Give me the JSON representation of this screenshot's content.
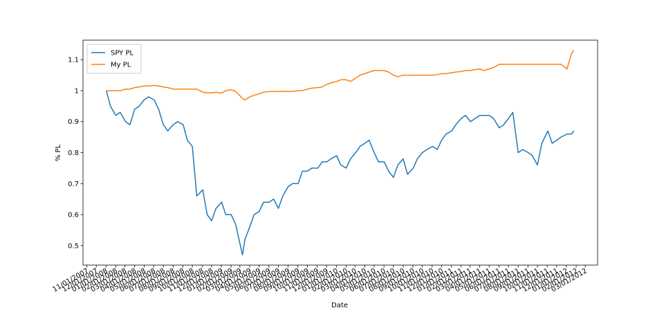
{
  "chart_data": {
    "type": "line",
    "xlabel": "Date",
    "ylabel": "% PL",
    "x": [
      "2008-01-02",
      "2008-01-15",
      "2008-02-01",
      "2008-02-15",
      "2008-03-03",
      "2008-03-17",
      "2008-04-01",
      "2008-04-15",
      "2008-05-01",
      "2008-05-15",
      "2008-06-02",
      "2008-06-16",
      "2008-07-01",
      "2008-07-15",
      "2008-08-01",
      "2008-08-15",
      "2008-09-02",
      "2008-09-15",
      "2008-10-01",
      "2008-10-15",
      "2008-11-03",
      "2008-11-17",
      "2008-12-01",
      "2008-12-15",
      "2009-01-02",
      "2009-01-15",
      "2009-02-01",
      "2009-02-15",
      "2009-03-09",
      "2009-03-17",
      "2009-04-01",
      "2009-04-15",
      "2009-05-01",
      "2009-05-15",
      "2009-06-02",
      "2009-06-16",
      "2009-07-01",
      "2009-07-15",
      "2009-08-01",
      "2009-08-15",
      "2009-09-02",
      "2009-09-15",
      "2009-10-01",
      "2009-10-15",
      "2009-11-03",
      "2009-11-17",
      "2009-12-01",
      "2009-12-15",
      "2010-01-02",
      "2010-01-15",
      "2010-02-01",
      "2010-02-15",
      "2010-03-03",
      "2010-03-17",
      "2010-04-01",
      "2010-04-15",
      "2010-05-01",
      "2010-05-15",
      "2010-06-02",
      "2010-06-16",
      "2010-07-01",
      "2010-07-15",
      "2010-08-01",
      "2010-08-15",
      "2010-09-02",
      "2010-09-15",
      "2010-10-01",
      "2010-10-15",
      "2010-11-03",
      "2010-11-17",
      "2010-12-01",
      "2010-12-15",
      "2011-01-02",
      "2011-01-15",
      "2011-02-01",
      "2011-02-15",
      "2011-03-03",
      "2011-03-17",
      "2011-04-01",
      "2011-04-15",
      "2011-05-01",
      "2011-05-15",
      "2011-06-02",
      "2011-06-16",
      "2011-07-01",
      "2011-07-15",
      "2011-08-01",
      "2011-08-15",
      "2011-09-02",
      "2011-09-15",
      "2011-10-01",
      "2011-10-15",
      "2011-11-03",
      "2011-11-17",
      "2011-12-01",
      "2011-12-15",
      "2012-01-03",
      "2012-01-17",
      "2012-01-25"
    ],
    "series": [
      {
        "name": "SPY PL",
        "color": "#1f77b4",
        "values": [
          1.0,
          0.95,
          0.92,
          0.93,
          0.9,
          0.89,
          0.94,
          0.95,
          0.97,
          0.98,
          0.97,
          0.94,
          0.89,
          0.87,
          0.89,
          0.9,
          0.89,
          0.84,
          0.82,
          0.66,
          0.68,
          0.6,
          0.58,
          0.62,
          0.64,
          0.6,
          0.6,
          0.57,
          0.47,
          0.52,
          0.56,
          0.6,
          0.61,
          0.64,
          0.64,
          0.65,
          0.62,
          0.66,
          0.69,
          0.7,
          0.7,
          0.74,
          0.74,
          0.75,
          0.75,
          0.77,
          0.77,
          0.78,
          0.79,
          0.76,
          0.75,
          0.78,
          0.8,
          0.82,
          0.83,
          0.84,
          0.8,
          0.77,
          0.77,
          0.74,
          0.72,
          0.76,
          0.78,
          0.73,
          0.75,
          0.78,
          0.8,
          0.81,
          0.82,
          0.81,
          0.84,
          0.86,
          0.87,
          0.89,
          0.91,
          0.92,
          0.9,
          0.91,
          0.92,
          0.92,
          0.92,
          0.91,
          0.88,
          0.89,
          0.91,
          0.93,
          0.8,
          0.81,
          0.8,
          0.79,
          0.76,
          0.83,
          0.87,
          0.83,
          0.84,
          0.85,
          0.86,
          0.86,
          0.87
        ]
      },
      {
        "name": "My PL",
        "color": "#ff7f0e",
        "values": [
          1.0,
          1.0,
          1.0,
          1.0,
          1.005,
          1.005,
          1.01,
          1.012,
          1.015,
          1.015,
          1.017,
          1.015,
          1.012,
          1.01,
          1.005,
          1.005,
          1.005,
          1.005,
          1.005,
          1.005,
          0.995,
          0.993,
          0.993,
          0.995,
          0.992,
          1.0,
          1.003,
          0.998,
          0.975,
          0.97,
          0.98,
          0.985,
          0.99,
          0.995,
          0.997,
          0.997,
          0.997,
          0.998,
          0.997,
          0.998,
          1.0,
          1.0,
          1.005,
          1.008,
          1.01,
          1.012,
          1.02,
          1.025,
          1.03,
          1.035,
          1.035,
          1.03,
          1.04,
          1.05,
          1.055,
          1.06,
          1.065,
          1.065,
          1.065,
          1.06,
          1.05,
          1.045,
          1.05,
          1.05,
          1.05,
          1.05,
          1.05,
          1.05,
          1.05,
          1.052,
          1.055,
          1.055,
          1.058,
          1.06,
          1.062,
          1.065,
          1.065,
          1.068,
          1.07,
          1.065,
          1.07,
          1.075,
          1.085,
          1.085,
          1.085,
          1.085,
          1.085,
          1.085,
          1.085,
          1.085,
          1.085,
          1.085,
          1.085,
          1.085,
          1.085,
          1.085,
          1.07,
          1.12,
          1.13
        ]
      }
    ],
    "xlim": [
      "2007-10-20",
      "2012-04-09"
    ],
    "xticks": [
      {
        "value": "2007-11-01",
        "label": "11/01/2007"
      },
      {
        "value": "2007-12-01",
        "label": "12/01/2007"
      },
      {
        "value": "2008-01-01",
        "label": "01/01/2008"
      },
      {
        "value": "2008-02-01",
        "label": "02/01/2008"
      },
      {
        "value": "2008-03-01",
        "label": "03/01/2008"
      },
      {
        "value": "2008-04-01",
        "label": "04/01/2008"
      },
      {
        "value": "2008-05-01",
        "label": "05/01/2008"
      },
      {
        "value": "2008-06-01",
        "label": "06/01/2008"
      },
      {
        "value": "2008-07-01",
        "label": "07/01/2008"
      },
      {
        "value": "2008-08-01",
        "label": "08/01/2008"
      },
      {
        "value": "2008-09-01",
        "label": "09/01/2008"
      },
      {
        "value": "2008-10-01",
        "label": "10/01/2008"
      },
      {
        "value": "2008-11-01",
        "label": "11/01/2008"
      },
      {
        "value": "2008-12-01",
        "label": "12/01/2008"
      },
      {
        "value": "2009-01-01",
        "label": "01/01/2009"
      },
      {
        "value": "2009-02-01",
        "label": "02/01/2009"
      },
      {
        "value": "2009-03-01",
        "label": "03/01/2009"
      },
      {
        "value": "2009-04-01",
        "label": "04/01/2009"
      },
      {
        "value": "2009-05-01",
        "label": "05/01/2009"
      },
      {
        "value": "2009-06-01",
        "label": "06/01/2009"
      },
      {
        "value": "2009-07-01",
        "label": "07/01/2009"
      },
      {
        "value": "2009-08-01",
        "label": "08/01/2009"
      },
      {
        "value": "2009-09-01",
        "label": "09/01/2009"
      },
      {
        "value": "2009-10-01",
        "label": "10/01/2009"
      },
      {
        "value": "2009-11-01",
        "label": "11/01/2009"
      },
      {
        "value": "2009-12-01",
        "label": "12/01/2009"
      },
      {
        "value": "2010-01-01",
        "label": "01/01/2010"
      },
      {
        "value": "2010-02-01",
        "label": "02/01/2010"
      },
      {
        "value": "2010-03-01",
        "label": "03/01/2010"
      },
      {
        "value": "2010-04-01",
        "label": "04/01/2010"
      },
      {
        "value": "2010-05-01",
        "label": "05/01/2010"
      },
      {
        "value": "2010-06-01",
        "label": "06/01/2010"
      },
      {
        "value": "2010-07-01",
        "label": "07/01/2010"
      },
      {
        "value": "2010-08-01",
        "label": "08/01/2010"
      },
      {
        "value": "2010-09-01",
        "label": "09/01/2010"
      },
      {
        "value": "2010-10-01",
        "label": "10/01/2010"
      },
      {
        "value": "2010-11-01",
        "label": "11/01/2010"
      },
      {
        "value": "2010-12-01",
        "label": "12/01/2010"
      },
      {
        "value": "2011-01-01",
        "label": "01/01/2011"
      },
      {
        "value": "2011-02-01",
        "label": "02/01/2011"
      },
      {
        "value": "2011-03-01",
        "label": "03/01/2011"
      },
      {
        "value": "2011-04-01",
        "label": "04/01/2011"
      },
      {
        "value": "2011-05-01",
        "label": "05/01/2011"
      },
      {
        "value": "2011-06-01",
        "label": "06/01/2011"
      },
      {
        "value": "2011-07-01",
        "label": "07/01/2011"
      },
      {
        "value": "2011-08-01",
        "label": "08/01/2011"
      },
      {
        "value": "2011-09-01",
        "label": "09/01/2011"
      },
      {
        "value": "2011-10-01",
        "label": "10/01/2011"
      },
      {
        "value": "2011-11-01",
        "label": "11/01/2011"
      },
      {
        "value": "2011-12-01",
        "label": "12/01/2011"
      },
      {
        "value": "2012-01-01",
        "label": "01/01/2012"
      },
      {
        "value": "2012-02-01",
        "label": "02/01/2012"
      },
      {
        "value": "2012-03-01",
        "label": "03/01/2012"
      }
    ],
    "ylim": [
      0.437,
      1.163
    ],
    "yticks": [
      0.5,
      0.6,
      0.7,
      0.8,
      0.9,
      1.0,
      1.1
    ],
    "legend": "upper left",
    "grid": false
  }
}
